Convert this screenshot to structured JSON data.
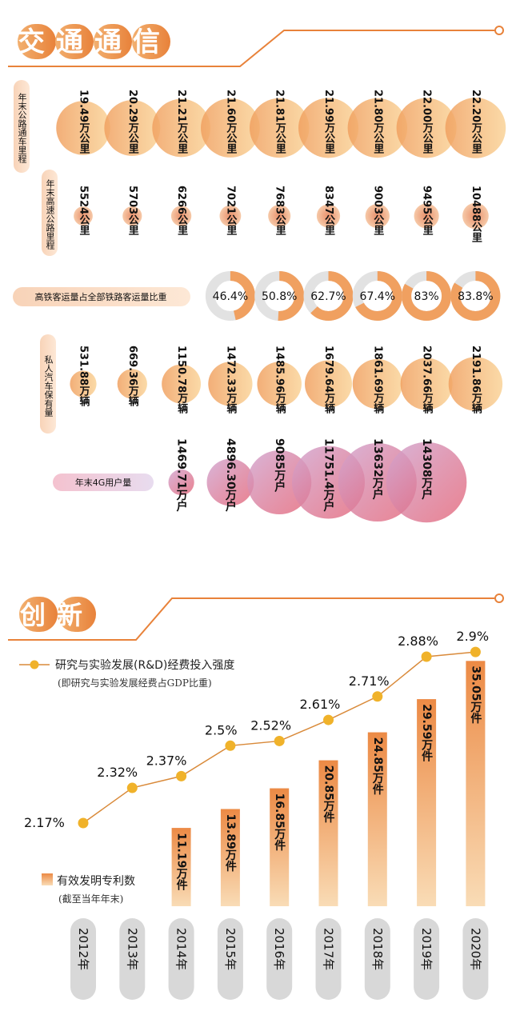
{
  "colors": {
    "accent": "#e8823a",
    "line": "#d98a3a",
    "dot": "#f0b22a",
    "bubble_light": "#f8cd8c",
    "bubble_dark": "#ec9a60",
    "ring_track": "#e2e2e2",
    "lilac": "#c9a6c7",
    "red": "#e0607a",
    "pill_grey": "#d8d8d8"
  },
  "sections": {
    "transport_title": "交通通信",
    "innovation_title": "创新"
  },
  "years": [
    "2012年",
    "2013年",
    "2014年",
    "2015年",
    "2016年",
    "2017年",
    "2018年",
    "2019年",
    "2020年"
  ],
  "chart_data": [
    {
      "type": "bubble",
      "label": "年末公路通车里程",
      "categories": [
        "2012年",
        "2013年",
        "2014年",
        "2015年",
        "2016年",
        "2017年",
        "2018年",
        "2019年",
        "2020年"
      ],
      "values": [
        19.49,
        20.29,
        21.21,
        21.6,
        21.81,
        21.99,
        21.8,
        22.0,
        22.2
      ],
      "value_labels": [
        "19.49万公里",
        "20.29万公里",
        "21.21万公里",
        "21.60万公里",
        "21.81万公里",
        "21.99万公里",
        "21.80万公里",
        "22.00万公里",
        "22.20万公里"
      ],
      "unit": "万公里"
    },
    {
      "type": "bubble",
      "label": "年末高速公路里程",
      "categories": [
        "2012年",
        "2013年",
        "2014年",
        "2015年",
        "2016年",
        "2017年",
        "2018年",
        "2019年",
        "2020年"
      ],
      "values": [
        5524,
        5703,
        6266,
        7021,
        7683,
        8347,
        9003,
        9495,
        10488
      ],
      "value_labels": [
        "5524公里",
        "5703公里",
        "6266公里",
        "7021公里",
        "7683公里",
        "8347公里",
        "9003公里",
        "9495公里",
        "10488公里"
      ],
      "unit": "公里"
    },
    {
      "type": "ring",
      "label": "高铁客运量占全部铁路客运量比重",
      "categories": [
        "2015年",
        "2016年",
        "2017年",
        "2018年",
        "2019年",
        "2020年"
      ],
      "values": [
        46.4,
        50.8,
        62.7,
        67.4,
        83,
        83.8
      ],
      "value_labels": [
        "46.4%",
        "50.8%",
        "62.7%",
        "67.4%",
        "83%",
        "83.8%"
      ],
      "unit": "%"
    },
    {
      "type": "bubble",
      "label": "私人汽车保有量",
      "categories": [
        "2012年",
        "2013年",
        "2014年",
        "2015年",
        "2016年",
        "2017年",
        "2018年",
        "2019年",
        "2020年"
      ],
      "values": [
        531.88,
        669.36,
        1150.78,
        1472.33,
        1485.96,
        1679.64,
        1861.69,
        2037.66,
        2191.86
      ],
      "value_labels": [
        "531.88万辆",
        "669.36万辆",
        "1150.78万辆",
        "1472.33万辆",
        "1485.96万辆",
        "1679.64万辆",
        "1861.69万辆",
        "2037.66万辆",
        "2191.86万辆"
      ],
      "unit": "万辆"
    },
    {
      "type": "bubble",
      "label": "年末4G用户量",
      "categories": [
        "2014年",
        "2015年",
        "2016年",
        "2017年",
        "2018年",
        "2019年"
      ],
      "values": [
        1469.71,
        4896.3,
        9085,
        11751.4,
        13632,
        14308
      ],
      "value_labels": [
        "1469.71万户",
        "4896.30万户",
        "9085万户",
        "11751.4万户",
        "13632万户",
        "14308万户"
      ],
      "unit": "万户"
    },
    {
      "type": "line",
      "label": "研究与实验发展(R&D)经费投入强度",
      "sublabel": "(即研究与实验发展经费占GDP比重)",
      "categories": [
        "2012年",
        "2013年",
        "2014年",
        "2015年",
        "2016年",
        "2017年",
        "2018年",
        "2019年",
        "2020年"
      ],
      "values": [
        2.17,
        2.32,
        2.37,
        2.5,
        2.52,
        2.61,
        2.71,
        2.88,
        2.9
      ],
      "value_labels": [
        "2.17%",
        "2.32%",
        "2.37%",
        "2.5%",
        "2.52%",
        "2.61%",
        "2.71%",
        "2.88%",
        "2.9%"
      ],
      "unit": "%"
    },
    {
      "type": "bar",
      "label": "有效发明专利数",
      "sublabel": "(截至当年年末)",
      "categories": [
        "2014年",
        "2015年",
        "2016年",
        "2017年",
        "2018年",
        "2019年",
        "2020年"
      ],
      "values": [
        11.19,
        13.89,
        16.85,
        20.85,
        24.85,
        29.59,
        35.05
      ],
      "value_labels": [
        "11.19万件",
        "13.89万件",
        "16.85万件",
        "20.85万件",
        "24.85万件",
        "29.59万件",
        "35.05万件"
      ],
      "unit": "万件"
    }
  ]
}
